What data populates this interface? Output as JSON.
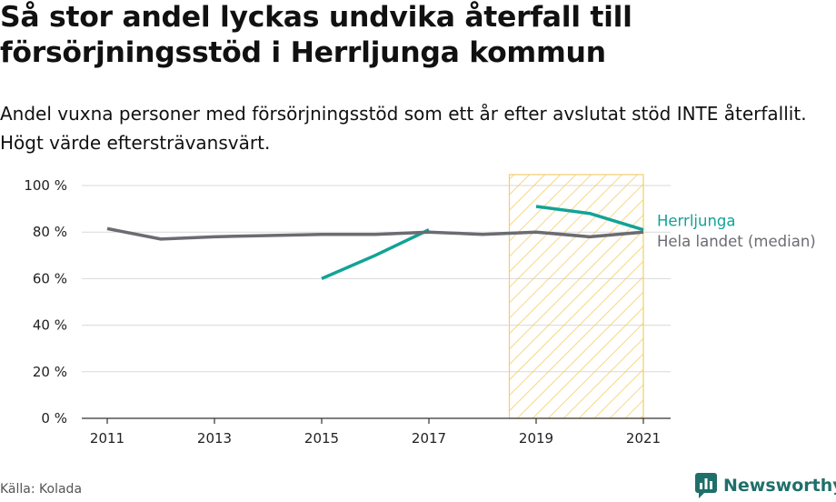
{
  "title": "Så stor andel lyckas undvika återfall till försörjningsstöd i Herrljunga kommun",
  "subtitle": "Andel vuxna personer med försörjningsstöd som ett år efter avslutat stöd INTE återfallit. Högt värde eftersträvansvärt.",
  "source": "Källa: Kolada",
  "brand": "Newsworthy",
  "colors": {
    "herrljunga": "#12a396",
    "median": "#6b6b72",
    "highlight": "#f2cf66",
    "grid": "#d9d9d9"
  },
  "chart_data": {
    "type": "line",
    "x": [
      2011,
      2012,
      2013,
      2014,
      2015,
      2016,
      2017,
      2018,
      2019,
      2020,
      2021
    ],
    "x_ticks": [
      2011,
      2013,
      2015,
      2017,
      2019,
      2021
    ],
    "ylim": [
      0,
      100
    ],
    "y_ticks": [
      0,
      20,
      40,
      60,
      80,
      100
    ],
    "y_tick_labels": [
      "0 %",
      "20 %",
      "40 %",
      "60 %",
      "80 %",
      "100 %"
    ],
    "highlight_range": [
      2018.5,
      2021
    ],
    "series": [
      {
        "name": "Herrljunga",
        "color": "#12a396",
        "values": [
          null,
          null,
          null,
          null,
          60,
          70,
          81,
          null,
          91,
          88,
          81
        ]
      },
      {
        "name": "Hela landet (median)",
        "color": "#6b6b72",
        "values": [
          81.5,
          77,
          78,
          78.5,
          79,
          79,
          80,
          79,
          80,
          78,
          80
        ]
      }
    ],
    "grid": true,
    "legend": "right-end labels"
  }
}
